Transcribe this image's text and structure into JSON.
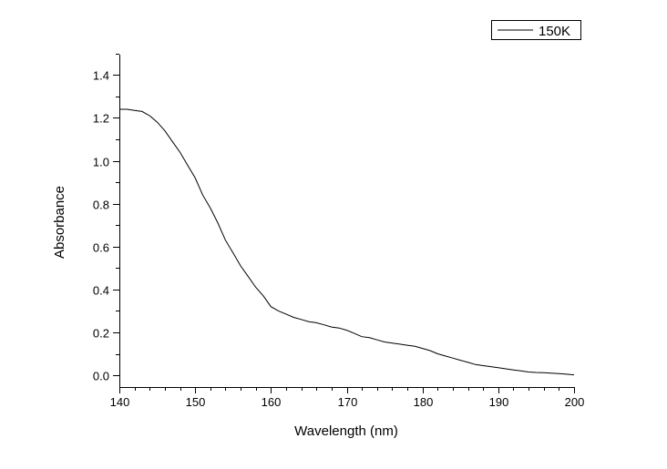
{
  "chart_data": {
    "type": "line",
    "title": "",
    "xlabel": "Wavelength (nm)",
    "ylabel": "Absorbance",
    "xlim": [
      140,
      200
    ],
    "ylim": [
      -0.055,
      1.495
    ],
    "xticks": [
      140,
      150,
      160,
      170,
      180,
      190,
      200
    ],
    "xtick_labels": [
      "140",
      "150",
      "160",
      "170",
      "180",
      "190",
      "200"
    ],
    "yticks": [
      0.0,
      0.2,
      0.4,
      0.6,
      0.8,
      1.0,
      1.2,
      1.4
    ],
    "ytick_labels": [
      "0.0",
      "0.2",
      "0.4",
      "0.6",
      "0.8",
      "1.0",
      "1.2",
      "1.4"
    ],
    "grid": false,
    "legend_position": "top-right",
    "series": [
      {
        "name": "150K",
        "color": "#000000",
        "x": [
          140,
          141,
          142,
          143,
          144,
          145,
          146,
          147,
          148,
          149,
          150,
          151,
          152,
          153,
          154,
          155,
          156,
          157,
          158,
          159,
          160,
          161,
          162,
          163,
          164,
          165,
          166,
          167,
          168,
          169,
          170,
          171,
          172,
          173,
          174,
          175,
          176,
          177,
          178,
          179,
          180,
          181,
          182,
          183,
          184,
          185,
          186,
          187,
          188,
          189,
          190,
          191,
          192,
          193,
          194,
          195,
          196,
          197,
          198,
          199,
          200
        ],
        "y": [
          1.24,
          1.24,
          1.235,
          1.23,
          1.21,
          1.18,
          1.14,
          1.09,
          1.04,
          0.98,
          0.92,
          0.84,
          0.78,
          0.71,
          0.63,
          0.57,
          0.51,
          0.46,
          0.41,
          0.37,
          0.32,
          0.3,
          0.285,
          0.27,
          0.26,
          0.25,
          0.245,
          0.235,
          0.225,
          0.22,
          0.21,
          0.195,
          0.18,
          0.175,
          0.165,
          0.155,
          0.15,
          0.145,
          0.14,
          0.135,
          0.125,
          0.115,
          0.1,
          0.09,
          0.08,
          0.07,
          0.06,
          0.05,
          0.045,
          0.04,
          0.035,
          0.03,
          0.025,
          0.02,
          0.015,
          0.013,
          0.012,
          0.01,
          0.008,
          0.005,
          0.002
        ]
      }
    ]
  }
}
